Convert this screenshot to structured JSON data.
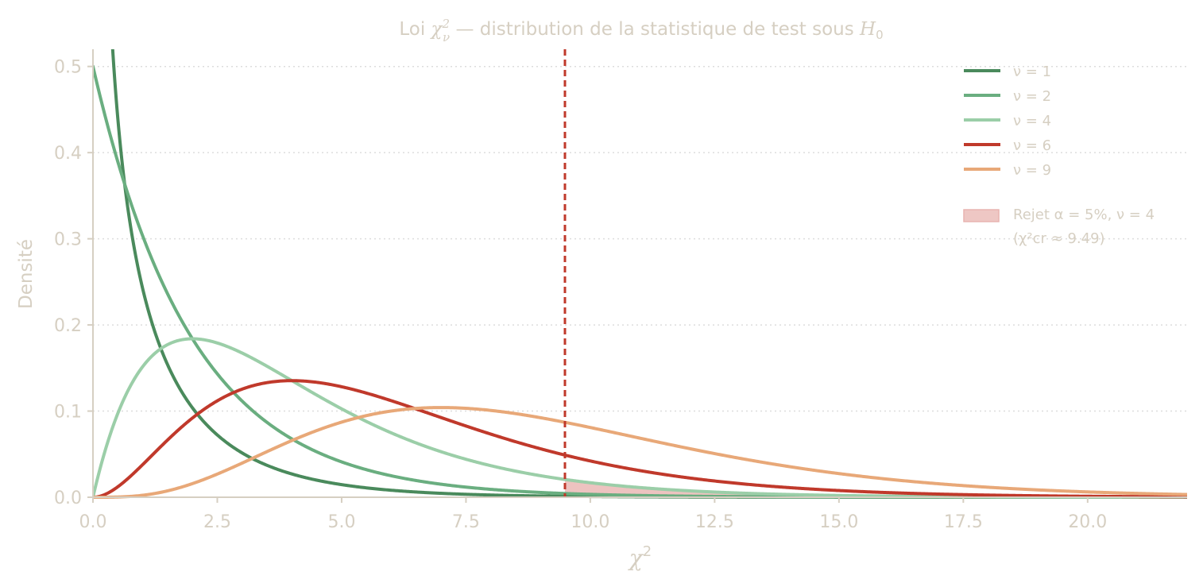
{
  "colors": {
    "nu1": "#4a8a5c",
    "nu2": "#6aae80",
    "nu4": "#9bcea8",
    "nu6": "#c0392b",
    "nu9": "#e8a878",
    "rejection": "#e8b4b0",
    "text": "#d6cfc2",
    "axis": "#d6cfc2",
    "grid": "#dddddd",
    "critical_line": "#c0392b"
  },
  "chart_data": {
    "type": "line",
    "title": {
      "prefix": "Loi ",
      "symbol": "χ",
      "sup": "2",
      "sub": "ν",
      "middle": " — distribution de la statistique de test sous ",
      "h": "H",
      "h_sub": "0"
    },
    "xlabel": {
      "symbol": "χ",
      "sup": "2"
    },
    "ylabel": "Densité",
    "xlim": [
      0,
      22
    ],
    "ylim": [
      0,
      0.52
    ],
    "xticks": [
      "0.0",
      "2.5",
      "5.0",
      "7.5",
      "10.0",
      "12.5",
      "15.0",
      "17.5",
      "20.0"
    ],
    "xtick_values": [
      0,
      2.5,
      5,
      7.5,
      10,
      12.5,
      15,
      17.5,
      20
    ],
    "yticks": [
      "0.0",
      "0.1",
      "0.2",
      "0.3",
      "0.4",
      "0.5"
    ],
    "ytick_values": [
      0,
      0.1,
      0.2,
      0.3,
      0.4,
      0.5
    ],
    "grid": "horizontal dotted",
    "legend_position": "top-right",
    "series": [
      {
        "name": "ν = 1",
        "df": 1,
        "color_key": "nu1"
      },
      {
        "name": "ν = 2",
        "df": 2,
        "color_key": "nu2"
      },
      {
        "name": "ν = 4",
        "df": 4,
        "color_key": "nu4"
      },
      {
        "name": "ν = 6",
        "df": 6,
        "color_key": "nu6"
      },
      {
        "name": "ν = 9",
        "df": 9,
        "color_key": "nu9"
      }
    ],
    "rejection_region": {
      "df": 4,
      "critical_value": 9.49,
      "label_line1": "Rejet α = 5%, ν = 4",
      "label_line2": "(χ²cr ≈ 9.49)"
    }
  }
}
